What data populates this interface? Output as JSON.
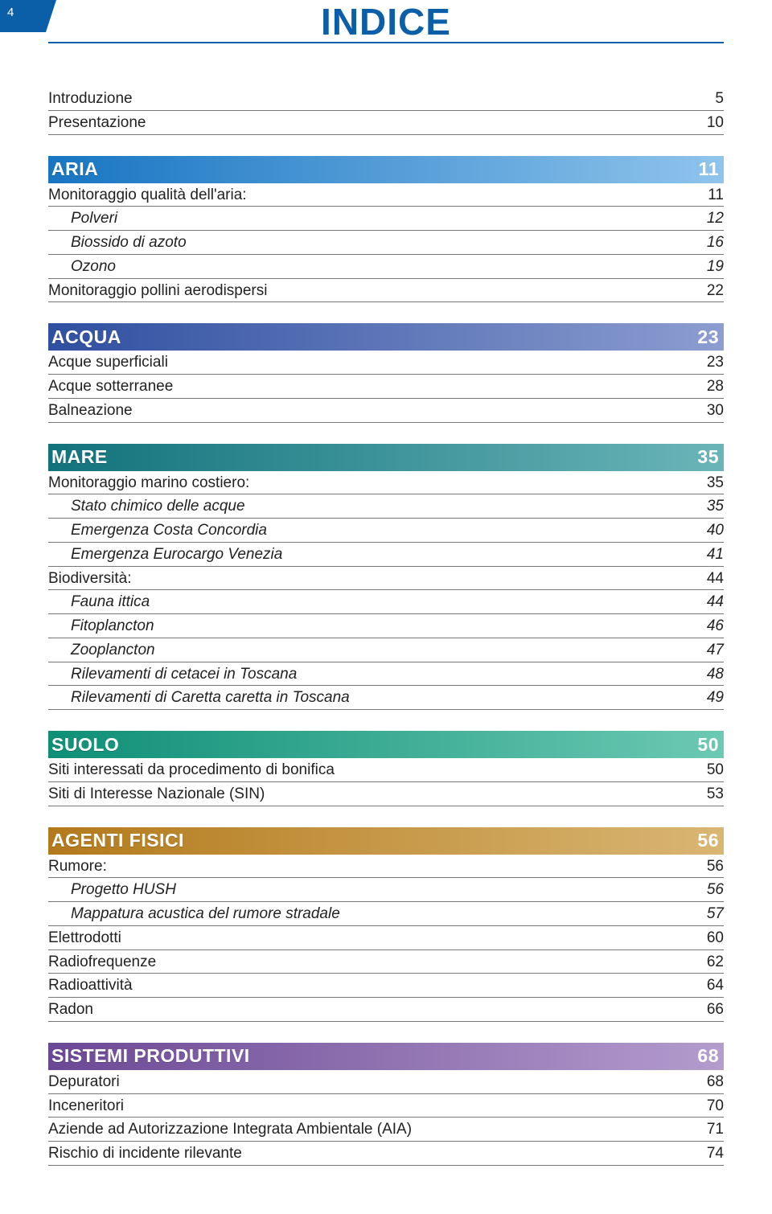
{
  "page_number": "4",
  "title": "INDICE",
  "colors": {
    "title": "#0b5ea8",
    "tab_bg": "#0b5ea8",
    "row_border": "#777777",
    "text": "#222222",
    "background": "#ffffff"
  },
  "gradients": {
    "aria": [
      "#1875c2",
      "#8fc4ec"
    ],
    "acqua": [
      "#2f4fa0",
      "#8c9dd0"
    ],
    "mare": [
      "#12727c",
      "#6ab5b8"
    ],
    "suolo": [
      "#0f8f77",
      "#6cc9b3"
    ],
    "agenti": [
      "#b37a1c",
      "#d9b673"
    ],
    "sistemi": [
      "#6b4895",
      "#b49ccd"
    ]
  },
  "intro": [
    {
      "label": "Introduzione",
      "page": "5"
    },
    {
      "label": "Presentazione",
      "page": "10"
    }
  ],
  "sections": [
    {
      "key": "aria",
      "title": "ARIA",
      "page": "11",
      "rows": [
        {
          "label": "Monitoraggio qualità dell'aria:",
          "page": "11",
          "indent": 0,
          "italic": false
        },
        {
          "label": "Polveri",
          "page": "12",
          "indent": 1,
          "italic": true
        },
        {
          "label": "Biossido di azoto",
          "page": "16",
          "indent": 1,
          "italic": true
        },
        {
          "label": "Ozono",
          "page": "19",
          "indent": 1,
          "italic": true
        },
        {
          "label": "Monitoraggio pollini aerodispersi",
          "page": "22",
          "indent": 0,
          "italic": false
        }
      ]
    },
    {
      "key": "acqua",
      "title": "ACQUA",
      "page": "23",
      "rows": [
        {
          "label": "Acque superficiali",
          "page": "23",
          "indent": 0,
          "italic": false
        },
        {
          "label": "Acque sotterranee",
          "page": "28",
          "indent": 0,
          "italic": false
        },
        {
          "label": "Balneazione",
          "page": "30",
          "indent": 0,
          "italic": false
        }
      ]
    },
    {
      "key": "mare",
      "title": "MARE",
      "page": "35",
      "rows": [
        {
          "label": "Monitoraggio marino costiero:",
          "page": "35",
          "indent": 0,
          "italic": false
        },
        {
          "label": "Stato chimico delle acque",
          "page": "35",
          "indent": 1,
          "italic": true
        },
        {
          "label": "Emergenza Costa Concordia",
          "page": "40",
          "indent": 1,
          "italic": true
        },
        {
          "label": "Emergenza Eurocargo Venezia",
          "page": "41",
          "indent": 1,
          "italic": true
        },
        {
          "label": "Biodiversità:",
          "page": "44",
          "indent": 0,
          "italic": false
        },
        {
          "label": "Fauna ittica",
          "page": "44",
          "indent": 1,
          "italic": true
        },
        {
          "label": "Fitoplancton",
          "page": "46",
          "indent": 1,
          "italic": true
        },
        {
          "label": "Zooplancton",
          "page": "47",
          "indent": 1,
          "italic": true
        },
        {
          "label": "Rilevamenti di cetacei in Toscana",
          "page": "48",
          "indent": 1,
          "italic": true
        },
        {
          "label": "Rilevamenti di Caretta caretta in Toscana",
          "page": "49",
          "indent": 1,
          "italic": true
        }
      ]
    },
    {
      "key": "suolo",
      "title": "SUOLO",
      "page": "50",
      "rows": [
        {
          "label": "Siti interessati da procedimento di bonifica",
          "page": "50",
          "indent": 0,
          "italic": false
        },
        {
          "label": "Siti di Interesse Nazionale (SIN)",
          "page": "53",
          "indent": 0,
          "italic": false
        }
      ]
    },
    {
      "key": "agenti",
      "title": "AGENTI FISICI",
      "page": "56",
      "rows": [
        {
          "label": "Rumore:",
          "page": "56",
          "indent": 0,
          "italic": false
        },
        {
          "label": "Progetto HUSH",
          "page": "56",
          "indent": 1,
          "italic": true
        },
        {
          "label": "Mappatura acustica del rumore stradale",
          "page": "57",
          "indent": 1,
          "italic": true
        },
        {
          "label": "Elettrodotti",
          "page": "60",
          "indent": 0,
          "italic": false
        },
        {
          "label": "Radiofrequenze",
          "page": "62",
          "indent": 0,
          "italic": false
        },
        {
          "label": "Radioattività",
          "page": "64",
          "indent": 0,
          "italic": false
        },
        {
          "label": "Radon",
          "page": "66",
          "indent": 0,
          "italic": false
        }
      ]
    },
    {
      "key": "sistemi",
      "title": "SISTEMI PRODUTTIVI",
      "page": "68",
      "rows": [
        {
          "label": "Depuratori",
          "page": "68",
          "indent": 0,
          "italic": false
        },
        {
          "label": "Inceneritori",
          "page": "70",
          "indent": 0,
          "italic": false
        },
        {
          "label": "Aziende ad Autorizzazione Integrata Ambientale (AIA)",
          "page": "71",
          "indent": 0,
          "italic": false
        },
        {
          "label": "Rischio di incidente rilevante",
          "page": "74",
          "indent": 0,
          "italic": false
        }
      ]
    }
  ]
}
